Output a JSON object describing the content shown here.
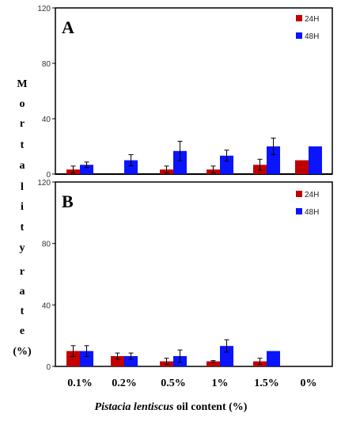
{
  "chart_data": [
    {
      "type": "bar",
      "panel": "A",
      "categories": [
        "0.1%",
        "0.2%",
        "0.5%",
        "1%",
        "1.5%",
        "0%"
      ],
      "ylim": [
        0,
        120
      ],
      "yticks": [
        "0",
        "40",
        "80",
        "120"
      ],
      "legend_position": "top-right",
      "series": [
        {
          "name": "24H",
          "color": "#c00000",
          "values": [
            3.3,
            0,
            3.3,
            3.3,
            6.7,
            10
          ],
          "errors": [
            2.5,
            0,
            2.5,
            2.5,
            4,
            0
          ]
        },
        {
          "name": "48H",
          "color": "#0a14ff",
          "values": [
            6.7,
            10,
            16.7,
            13.3,
            20,
            20
          ],
          "errors": [
            2,
            4,
            7,
            4,
            6,
            0
          ]
        }
      ]
    },
    {
      "type": "bar",
      "panel": "B",
      "categories": [
        "0.1%",
        "0.2%",
        "0.5%",
        "1%",
        "1.5%",
        "0%"
      ],
      "ylim": [
        0,
        120
      ],
      "yticks": [
        "0",
        "40",
        "80",
        "120"
      ],
      "legend_position": "top-right",
      "series": [
        {
          "name": "24H",
          "color": "#c00000",
          "values": [
            10,
            6.7,
            3.3,
            3.3,
            3.3,
            0
          ],
          "errors": [
            3.5,
            2,
            2,
            0.5,
            2,
            0
          ]
        },
        {
          "name": "48H",
          "color": "#0a14ff",
          "values": [
            10,
            6.7,
            6.7,
            13.3,
            10,
            0
          ],
          "errors": [
            3.5,
            2,
            4,
            4,
            0,
            0
          ]
        }
      ]
    }
  ],
  "y_axis_label_letters": [
    "M",
    "o",
    "r",
    "t",
    "a",
    "l",
    "i",
    "t",
    "y",
    "r",
    "a",
    "t",
    "e",
    "(%)"
  ],
  "x_axis_label": {
    "italic_part": "Pistacia lentiscus",
    "rest": " oil content (%)"
  }
}
